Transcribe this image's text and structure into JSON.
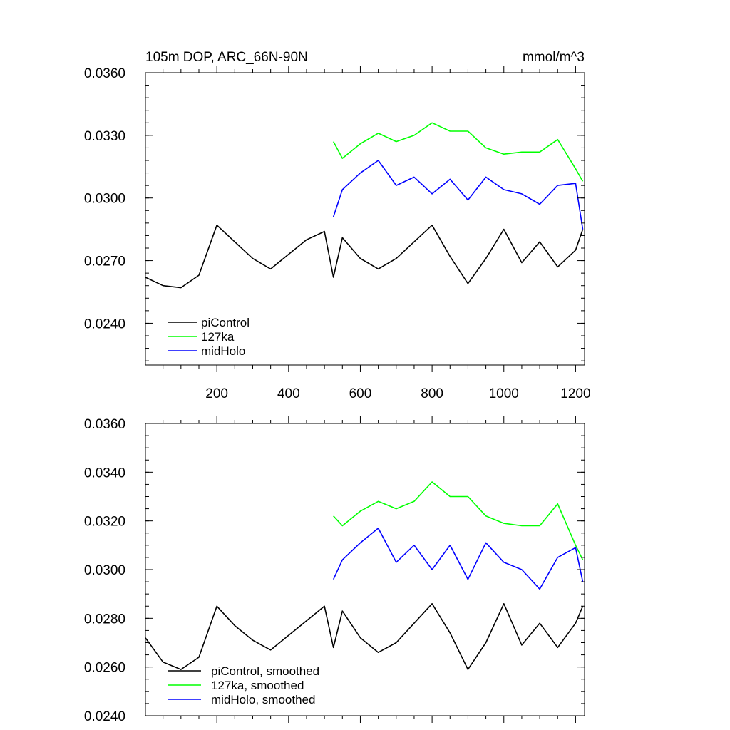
{
  "chart_data": [
    {
      "type": "line",
      "title": "105m DOP, ARC_66N-90N",
      "units_label": "mmol/m^3",
      "xlim": [
        1,
        1225
      ],
      "ylim": [
        0.022,
        0.036
      ],
      "yticks": [
        0.024,
        0.027,
        0.03,
        0.033,
        0.036
      ],
      "ytick_labels": [
        "0.0240",
        "0.0270",
        "0.0300",
        "0.0330",
        "0.0360"
      ],
      "xticks": [
        200,
        400,
        600,
        800,
        1000,
        1200
      ],
      "xtick_labels": [
        "200",
        "400",
        "600",
        "800",
        "1000",
        "1200"
      ],
      "legend_position": "lower-left",
      "series": [
        {
          "name": "piControl",
          "color": "#000000",
          "x": [
            1,
            50,
            100,
            150,
            200,
            250,
            300,
            350,
            400,
            450,
            500,
            525,
            550,
            600,
            650,
            700,
            750,
            800,
            850,
            900,
            950,
            1000,
            1050,
            1100,
            1150,
            1200,
            1220
          ],
          "y": [
            0.0262,
            0.0258,
            0.0257,
            0.0263,
            0.0287,
            0.0279,
            0.0271,
            0.0266,
            0.0273,
            0.028,
            0.0284,
            0.0262,
            0.0281,
            0.0271,
            0.0266,
            0.0271,
            0.0279,
            0.0287,
            0.0272,
            0.0259,
            0.0271,
            0.0285,
            0.0269,
            0.0279,
            0.0267,
            0.0275,
            0.0285
          ]
        },
        {
          "name": "127ka",
          "color": "#00ff00",
          "x": [
            525,
            550,
            600,
            650,
            700,
            750,
            800,
            850,
            900,
            950,
            1000,
            1050,
            1100,
            1150,
            1200,
            1220
          ],
          "y": [
            0.0327,
            0.0319,
            0.0326,
            0.0331,
            0.0327,
            0.033,
            0.0336,
            0.0332,
            0.0332,
            0.0324,
            0.0321,
            0.0322,
            0.0322,
            0.0328,
            0.0314,
            0.0308
          ]
        },
        {
          "name": "midHolo",
          "color": "#0000ff",
          "x": [
            525,
            550,
            600,
            650,
            700,
            750,
            800,
            850,
            900,
            950,
            1000,
            1050,
            1100,
            1150,
            1200,
            1220
          ],
          "y": [
            0.0291,
            0.0304,
            0.0312,
            0.0318,
            0.0306,
            0.031,
            0.0302,
            0.0309,
            0.0299,
            0.031,
            0.0304,
            0.0302,
            0.0297,
            0.0306,
            0.0307,
            0.0285
          ]
        }
      ]
    },
    {
      "type": "line",
      "xlim": [
        1,
        1225
      ],
      "ylim": [
        0.024,
        0.036
      ],
      "yticks": [
        0.024,
        0.026,
        0.028,
        0.03,
        0.032,
        0.034,
        0.036
      ],
      "ytick_labels": [
        "0.0240",
        "0.0260",
        "0.0280",
        "0.0300",
        "0.0320",
        "0.0340",
        "0.0360"
      ],
      "legend_position": "lower-left",
      "series": [
        {
          "name": "piControl, smoothed",
          "color": "#000000",
          "x": [
            1,
            50,
            100,
            150,
            200,
            250,
            300,
            350,
            400,
            450,
            500,
            525,
            550,
            600,
            650,
            700,
            750,
            800,
            850,
            900,
            950,
            1000,
            1050,
            1100,
            1150,
            1200,
            1220
          ],
          "y": [
            0.0272,
            0.0262,
            0.0259,
            0.0264,
            0.0285,
            0.0277,
            0.0271,
            0.0267,
            0.0273,
            0.0279,
            0.0285,
            0.0268,
            0.0283,
            0.0272,
            0.0266,
            0.027,
            0.0278,
            0.0286,
            0.0274,
            0.0259,
            0.027,
            0.0286,
            0.0269,
            0.0278,
            0.0268,
            0.0278,
            0.0285
          ]
        },
        {
          "name": "127ka, smoothed",
          "color": "#00ff00",
          "x": [
            525,
            550,
            600,
            650,
            700,
            750,
            800,
            850,
            900,
            950,
            1000,
            1050,
            1100,
            1150,
            1200,
            1220
          ],
          "y": [
            0.0322,
            0.0318,
            0.0324,
            0.0328,
            0.0325,
            0.0328,
            0.0336,
            0.033,
            0.033,
            0.0322,
            0.0319,
            0.0318,
            0.0318,
            0.0327,
            0.031,
            0.0304
          ]
        },
        {
          "name": "midHolo, smoothed",
          "color": "#0000ff",
          "x": [
            525,
            550,
            600,
            650,
            700,
            750,
            800,
            850,
            900,
            950,
            1000,
            1050,
            1100,
            1150,
            1200,
            1220
          ],
          "y": [
            0.0296,
            0.0304,
            0.0311,
            0.0317,
            0.0303,
            0.031,
            0.03,
            0.031,
            0.0296,
            0.0311,
            0.0303,
            0.03,
            0.0292,
            0.0305,
            0.0309,
            0.0295
          ]
        }
      ]
    }
  ]
}
